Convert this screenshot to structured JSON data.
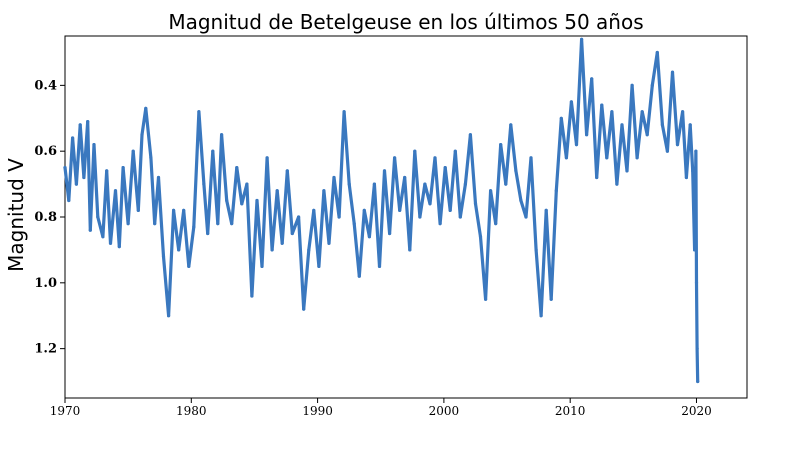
{
  "chart_data": {
    "type": "line",
    "title": "Magnitud de Betelgeuse en los últimos 50 años",
    "xlabel": "",
    "ylabel": "Magnitud V",
    "xlim": [
      1970,
      2024
    ],
    "ylim": [
      1.35,
      0.25
    ],
    "y_inverted": true,
    "grid": false,
    "legend": "none",
    "xticks": [
      "1970",
      "1980",
      "1990",
      "2000",
      "2010",
      "2020"
    ],
    "yticks": [
      "0.4",
      "0.6",
      "0.8",
      "1.0",
      "1.2"
    ],
    "color": "#3a78bf",
    "series": [
      {
        "x": [
          1970.0,
          1970.3,
          1970.6,
          1970.9,
          1971.2,
          1971.5,
          1971.8,
          1972.0,
          1972.3,
          1972.6,
          1973.0,
          1973.3,
          1973.6,
          1974.0,
          1974.3,
          1974.6,
          1975.0,
          1975.4,
          1975.8,
          1976.1,
          1976.4,
          1976.8,
          1977.1,
          1977.4,
          1977.8,
          1978.2,
          1978.6,
          1979.0,
          1979.4,
          1979.8,
          1980.2,
          1980.6,
          1981.0,
          1981.3,
          1981.7,
          1982.1,
          1982.4,
          1982.8,
          1983.2,
          1983.6,
          1984.0,
          1984.4,
          1984.8,
          1985.2,
          1985.6,
          1986.0,
          1986.4,
          1986.8,
          1987.2,
          1987.6,
          1988.0,
          1988.5,
          1988.9,
          1989.3,
          1989.7,
          1990.1,
          1990.5,
          1990.9,
          1991.3,
          1991.7,
          1992.1,
          1992.5,
          1992.9,
          1993.3,
          1993.7,
          1994.1,
          1994.5,
          1994.9,
          1995.3,
          1995.7,
          1996.1,
          1996.5,
          1996.9,
          1997.3,
          1997.7,
          1998.1,
          1998.5,
          1998.9,
          1999.3,
          1999.7,
          2000.1,
          2000.5,
          2000.9,
          2001.3,
          2001.7,
          2002.1,
          2002.5,
          2002.9,
          2003.3,
          2003.7,
          2004.1,
          2004.5,
          2004.9,
          2005.3,
          2005.7,
          2006.1,
          2006.5,
          2006.9,
          2007.3,
          2007.7,
          2008.1,
          2008.5,
          2008.9,
          2009.3,
          2009.7,
          2010.1,
          2010.5,
          2010.9,
          2011.3,
          2011.7,
          2012.1,
          2012.5,
          2012.9,
          2013.3,
          2013.7,
          2014.1,
          2014.5,
          2014.9,
          2015.3,
          2015.7,
          2016.1,
          2016.5,
          2016.9,
          2017.3,
          2017.7,
          2018.1,
          2018.5,
          2018.9,
          2019.2,
          2019.5,
          2019.7,
          2019.85,
          2019.95,
          2020.0,
          2020.05,
          2020.1
        ],
        "y": [
          0.65,
          0.75,
          0.56,
          0.7,
          0.52,
          0.68,
          0.51,
          0.84,
          0.58,
          0.8,
          0.86,
          0.66,
          0.88,
          0.72,
          0.89,
          0.65,
          0.82,
          0.6,
          0.78,
          0.55,
          0.47,
          0.62,
          0.82,
          0.68,
          0.92,
          1.1,
          0.78,
          0.9,
          0.78,
          0.95,
          0.83,
          0.48,
          0.7,
          0.85,
          0.6,
          0.82,
          0.55,
          0.75,
          0.82,
          0.65,
          0.76,
          0.7,
          1.04,
          0.75,
          0.95,
          0.62,
          0.9,
          0.72,
          0.88,
          0.66,
          0.85,
          0.8,
          1.08,
          0.9,
          0.78,
          0.95,
          0.72,
          0.88,
          0.68,
          0.8,
          0.48,
          0.7,
          0.82,
          0.98,
          0.78,
          0.86,
          0.7,
          0.95,
          0.66,
          0.85,
          0.62,
          0.78,
          0.68,
          0.9,
          0.6,
          0.8,
          0.7,
          0.76,
          0.62,
          0.82,
          0.65,
          0.78,
          0.6,
          0.8,
          0.7,
          0.55,
          0.76,
          0.86,
          1.05,
          0.72,
          0.82,
          0.58,
          0.7,
          0.52,
          0.66,
          0.75,
          0.8,
          0.62,
          0.9,
          1.1,
          0.78,
          1.05,
          0.72,
          0.5,
          0.62,
          0.45,
          0.58,
          0.26,
          0.55,
          0.38,
          0.68,
          0.46,
          0.62,
          0.48,
          0.7,
          0.52,
          0.66,
          0.4,
          0.62,
          0.48,
          0.55,
          0.4,
          0.3,
          0.52,
          0.6,
          0.36,
          0.58,
          0.48,
          0.68,
          0.52,
          0.66,
          0.9,
          0.6,
          1.0,
          1.2,
          1.3
        ]
      }
    ]
  }
}
